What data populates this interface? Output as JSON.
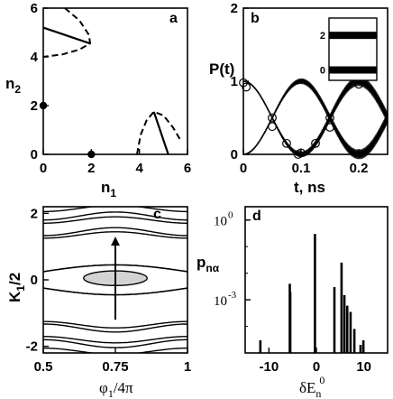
{
  "chart_data": [
    {
      "panel": "a",
      "type": "scatter",
      "xlabel": "n",
      "xlabel_sub": "1",
      "ylabel": "n",
      "ylabel_sub": "2",
      "xlim": [
        0,
        6
      ],
      "ylim": [
        0,
        6
      ],
      "xticks": [
        "0",
        "2",
        "4",
        "6"
      ],
      "yticks": [
        "0",
        "2",
        "4",
        "6"
      ],
      "points": [
        {
          "x": 0,
          "y": 2
        },
        {
          "x": 2,
          "y": 0
        }
      ],
      "solid_segments": [
        [
          [
            0,
            5.2
          ],
          [
            1.95,
            4.55
          ]
        ],
        [
          [
            4.6,
            1.75
          ],
          [
            5.2,
            0.0
          ]
        ]
      ],
      "dashed_curves": [
        [
          [
            0.9,
            6.0
          ],
          [
            1.5,
            5.5
          ],
          [
            1.9,
            4.9
          ],
          [
            1.95,
            4.55
          ],
          [
            1.5,
            4.3
          ],
          [
            0.8,
            4.1
          ],
          [
            0,
            4.0
          ]
        ],
        [
          [
            3.9,
            0.0
          ],
          [
            4.05,
            0.8
          ],
          [
            4.3,
            1.4
          ],
          [
            4.6,
            1.75
          ],
          [
            5.0,
            1.6
          ],
          [
            5.4,
            1.1
          ],
          [
            5.7,
            0.6
          ]
        ]
      ]
    },
    {
      "panel": "b",
      "type": "line",
      "xlabel": "t, ns",
      "ylabel": "P(t)",
      "xlim": [
        0,
        0.25
      ],
      "ylim": [
        0,
        2
      ],
      "xticks": [
        "0",
        "0.1",
        "0.2"
      ],
      "yticks": [
        "0",
        "1",
        "2"
      ],
      "series": [
        {
          "model": "1 - sin^2(pi*t/0.2)",
          "t_max": 0.25
        },
        {
          "model": "sin^2(pi*t/0.2)",
          "t_max": 0.25
        }
      ],
      "circle_markers": [
        {
          "x": 0.0,
          "y": 0.98
        },
        {
          "x": 0.005,
          "y": 0.92
        },
        {
          "x": 0.05,
          "y": 0.5
        },
        {
          "x": 0.075,
          "y": 0.15
        },
        {
          "x": 0.095,
          "y": 0.0
        },
        {
          "x": 0.1,
          "y": 0.02
        },
        {
          "x": 0.125,
          "y": 0.15
        },
        {
          "x": 0.15,
          "y": 0.5
        },
        {
          "x": 0.05,
          "y": 0.38
        },
        {
          "x": 0.15,
          "y": 0.37
        },
        {
          "x": 0.2,
          "y": 0.96
        }
      ],
      "inset": {
        "yticks": [
          "0",
          "2"
        ],
        "bands": [
          0,
          2
        ]
      }
    },
    {
      "panel": "c",
      "type": "line",
      "xlabel": "φ",
      "xlabel_sub": "1",
      "xlabel_tail": "/4π",
      "ylabel": "K",
      "ylabel_sub": "1",
      "ylabel_tail": "/2",
      "xlim": [
        0.5,
        1.0
      ],
      "ylim": [
        -2.2,
        2.2
      ],
      "xticks": [
        "0.5",
        "0.75",
        "1"
      ],
      "yticks": [
        "-2",
        "0",
        "2"
      ],
      "contour_levels": [
        1.35,
        1.45,
        1.8,
        1.92,
        2.15
      ],
      "separatrix": {
        "center": 0.0,
        "amplitude": 0.45
      },
      "ellipse": {
        "cx": 0.75,
        "cy": 0.05,
        "rx": 0.11,
        "ry": 0.22
      },
      "arrow": {
        "x": 0.75,
        "from": -1.2,
        "to": 1.3
      }
    },
    {
      "panel": "d",
      "type": "bar",
      "xlabel": "δE",
      "xlabel_sub": "n",
      "xlabel_sup": "0",
      "ylabel": "p",
      "ylabel_sub": "nα",
      "xlim": [
        -15,
        15
      ],
      "ylog": true,
      "ylim_exp": [
        -5,
        0.5
      ],
      "xticks": [
        "-10",
        "0",
        "10"
      ],
      "yticks": [
        {
          "base": "10",
          "exp": "0"
        },
        {
          "base": "10",
          "exp": "-3"
        }
      ],
      "bars": [
        {
          "x": -11.8,
          "v": 3e-05
        },
        {
          "x": -5.6,
          "v": 0.004
        },
        {
          "x": -5.5,
          "v": 0.002
        },
        {
          "x": -0.3,
          "v": 0.3
        },
        {
          "x": 3.8,
          "v": 0.003
        },
        {
          "x": 5.3,
          "v": 0.025
        },
        {
          "x": 5.9,
          "v": 0.0015
        },
        {
          "x": 6.5,
          "v": 0.0006
        },
        {
          "x": 7.2,
          "v": 0.00035
        },
        {
          "x": 8.0,
          "v": 8e-05
        },
        {
          "x": 9.3,
          "v": 2e-05
        },
        {
          "x": 9.9,
          "v": 3e-05
        }
      ]
    }
  ],
  "panels": {
    "a": "a",
    "b": "b",
    "c": "c",
    "d": "d"
  }
}
